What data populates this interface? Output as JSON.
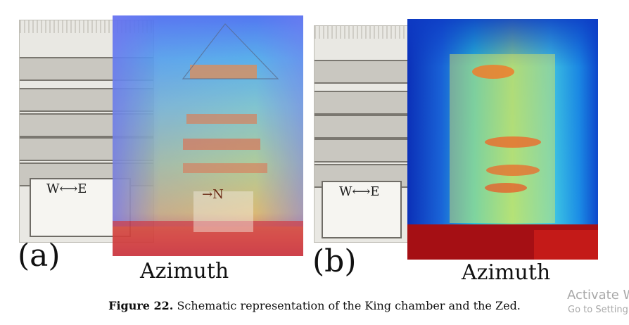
{
  "panels": [
    {
      "label": "(a)",
      "axis_label": "Azimuth",
      "direction_we": "W⟷E",
      "direction_n": "→N"
    },
    {
      "label": "(b)",
      "axis_label": "Azimuth",
      "direction_we": "W⟷E"
    }
  ],
  "caption": {
    "prefix": "Figure 22.",
    "text": " Schematic representation of the King chamber and the Zed."
  },
  "watermark": {
    "line1": "Activate W",
    "line2": "Go to Setting"
  }
}
